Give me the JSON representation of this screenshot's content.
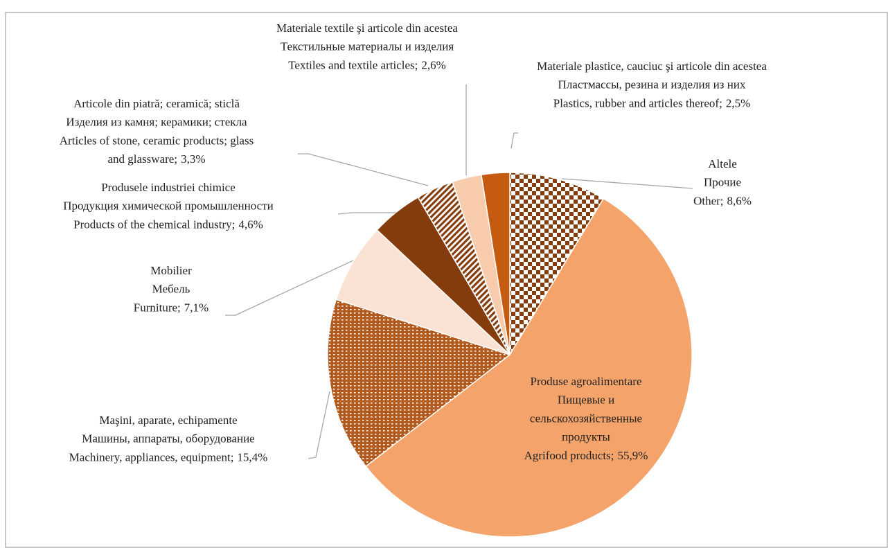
{
  "chart_data": {
    "type": "pie",
    "categories": [
      [
        "Altele",
        "Прочие",
        "Other;"
      ],
      [
        "Produse agroalimentare",
        "Пищевые и",
        "сельскохозяйственные",
        "продукты",
        "Agrifood products;"
      ],
      [
        "Maşini, aparate, echipamente",
        "Машины, аппараты, оборудование",
        "Machinery, appliances, equipment;"
      ],
      [
        "Mobilier",
        "Мебель",
        "Furniture;"
      ],
      [
        "Produsele industriei chimice",
        "Продукция химической промышленности",
        "Products of the chemical industry;"
      ],
      [
        "Articole din piatră; ceramică; sticlă",
        "Изделия из камня; керамики; стекла",
        "Articles of stone, ceramic products; glass",
        "and glassware;"
      ],
      [
        "Materiale textile şi articole din acestea",
        "Текстильные материалы и изделия",
        "Textiles and textile articles;"
      ],
      [
        "Materiale plastice, cauciuc şi articole din acestea",
        "Пластмассы, резина и изделия из них",
        "Plastics, rubber and articles thereof;"
      ]
    ],
    "values": [
      8.6,
      55.9,
      15.4,
      7.1,
      4.6,
      3.3,
      2.6,
      2.5
    ],
    "value_labels": [
      "8,6%",
      "55,9%",
      "15,4%",
      "7,1%",
      "4,6%",
      "3,3%",
      "2,6%",
      "2,5%"
    ],
    "colors": [
      "#843c0c",
      "#f4a46a",
      "#b35a1f",
      "#fae3d5",
      "#843c0c",
      "#843c0c",
      "#f8cbad",
      "#c55a11"
    ],
    "patterns": [
      "checker",
      null,
      "dots",
      null,
      null,
      "diagonal",
      null,
      null
    ]
  }
}
